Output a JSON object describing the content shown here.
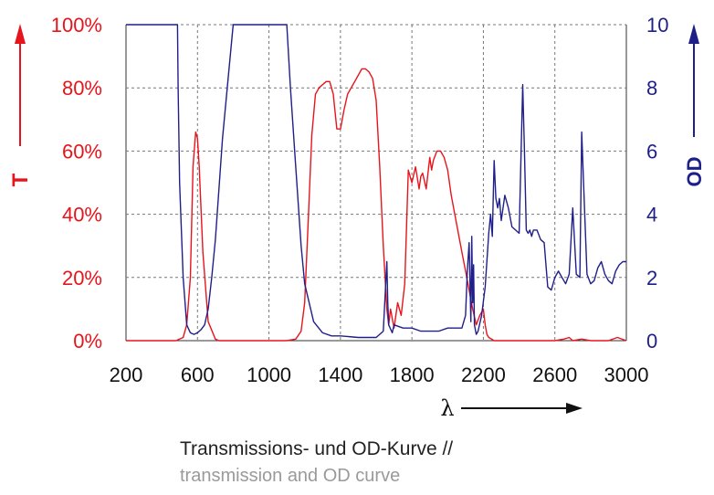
{
  "chart_data": {
    "type": "line",
    "title": "",
    "xlabel": "λ",
    "ylabel_left": "T",
    "ylabel_right": "OD",
    "xlim": [
      200,
      3000
    ],
    "ylim_left": [
      0,
      100
    ],
    "ylim_right": [
      0,
      10
    ],
    "grid": true,
    "x_ticks": [
      "200",
      "600",
      "1000",
      "1400",
      "1800",
      "2200",
      "2600",
      "3000"
    ],
    "y_left_ticks": [
      "0%",
      "20%",
      "40%",
      "60%",
      "80%",
      "100%"
    ],
    "y_right_ticks": [
      "0",
      "2",
      "4",
      "6",
      "8",
      "10"
    ],
    "colors": {
      "T": "#e8141c",
      "OD": "#1f1f8a"
    },
    "series": [
      {
        "axis": "left",
        "color": "#e8141c",
        "x": [
          200,
          480,
          520,
          540,
          560,
          575,
          590,
          600,
          610,
          630,
          660,
          700,
          720,
          1100,
          1150,
          1180,
          1200,
          1220,
          1240,
          1260,
          1280,
          1300,
          1320,
          1340,
          1360,
          1380,
          1400,
          1420,
          1440,
          1460,
          1480,
          1500,
          1520,
          1540,
          1560,
          1580,
          1600,
          1620,
          1640,
          1660,
          1670,
          1680,
          1700,
          1720,
          1740,
          1760,
          1780,
          1800,
          1820,
          1840,
          1850,
          1860,
          1880,
          1900,
          1910,
          1920,
          1940,
          1960,
          1980,
          2000,
          2020,
          2040,
          2060,
          2080,
          2100,
          2120,
          2140,
          2160,
          2180,
          2200,
          2210,
          2220,
          2230,
          2260,
          2600,
          2650,
          2680,
          2700,
          2750,
          2800,
          2900,
          2950,
          3000
        ],
        "values": [
          0,
          0,
          1,
          5,
          20,
          55,
          66,
          64,
          55,
          28,
          6,
          0.5,
          0,
          0,
          0.5,
          3,
          12,
          38,
          65,
          78,
          80,
          81,
          82,
          82,
          78,
          67,
          67,
          73,
          78,
          80,
          82,
          84,
          86,
          86,
          85,
          83,
          76,
          55,
          30,
          10,
          5,
          10,
          4,
          12,
          8,
          18,
          54,
          50,
          55,
          48,
          52,
          53,
          48,
          58,
          54,
          57,
          60,
          60,
          58,
          54,
          46,
          40,
          34,
          28,
          22,
          16,
          10,
          5,
          8,
          10,
          5,
          2,
          1,
          0,
          0,
          0.5,
          1,
          0,
          0.5,
          0,
          0,
          1,
          0
        ]
      },
      {
        "axis": "right",
        "color": "#1f1f8a",
        "x": [
          200,
          488,
          492,
          500,
          520,
          540,
          560,
          580,
          600,
          620,
          640,
          660,
          680,
          700,
          720,
          740,
          760,
          780,
          800,
          820,
          840,
          860,
          880,
          900,
          1000,
          1100,
          1120,
          1150,
          1180,
          1200,
          1250,
          1300,
          1350,
          1400,
          1500,
          1600,
          1640,
          1660,
          1665,
          1670,
          1690,
          1700,
          1750,
          1800,
          1850,
          1900,
          1950,
          2000,
          2050,
          2080,
          2100,
          2110,
          2120,
          2130,
          2135,
          2140,
          2145,
          2150,
          2160,
          2170,
          2190,
          2210,
          2230,
          2240,
          2250,
          2260,
          2270,
          2280,
          2290,
          2300,
          2320,
          2340,
          2360,
          2380,
          2400,
          2420,
          2430,
          2440,
          2450,
          2460,
          2470,
          2480,
          2500,
          2520,
          2540,
          2560,
          2580,
          2600,
          2620,
          2640,
          2660,
          2680,
          2700,
          2720,
          2740,
          2750,
          2760,
          2780,
          2800,
          2820,
          2840,
          2860,
          2880,
          2900,
          2920,
          2940,
          2960,
          2980,
          3000
        ],
        "values": [
          10,
          10,
          8,
          5,
          2,
          0.5,
          0.25,
          0.2,
          0.25,
          0.35,
          0.5,
          1,
          2,
          3.2,
          4.8,
          6.4,
          7.6,
          8.8,
          10,
          10,
          10,
          10,
          10,
          10,
          10,
          10,
          8,
          5.5,
          3,
          1.8,
          0.6,
          0.25,
          0.15,
          0.15,
          0.1,
          0.1,
          0.3,
          2.5,
          1.2,
          0.5,
          0.25,
          0.5,
          0.4,
          0.4,
          0.3,
          0.3,
          0.3,
          0.4,
          0.4,
          0.4,
          0.8,
          2.2,
          3.1,
          0.6,
          3.3,
          1.2,
          2.4,
          0.5,
          0.2,
          0.3,
          0.8,
          1.7,
          3.4,
          4,
          3.3,
          5.7,
          4.5,
          4.2,
          4.5,
          3.8,
          4.6,
          4.2,
          3.6,
          3.5,
          3.4,
          8.1,
          6,
          3.5,
          3.4,
          3.5,
          3.3,
          3.5,
          3.5,
          3.2,
          3.1,
          1.7,
          1.6,
          2,
          2.2,
          2,
          1.8,
          2.1,
          4.2,
          2.1,
          2,
          6.6,
          5.1,
          2.1,
          1.8,
          1.9,
          2.3,
          2.5,
          2.1,
          1.9,
          1.8,
          2.2,
          2.4,
          2.5,
          2.5
        ]
      }
    ]
  },
  "caption": {
    "line1": "Transmissions- und OD-Kurve //",
    "line2": "transmission and OD curve"
  }
}
